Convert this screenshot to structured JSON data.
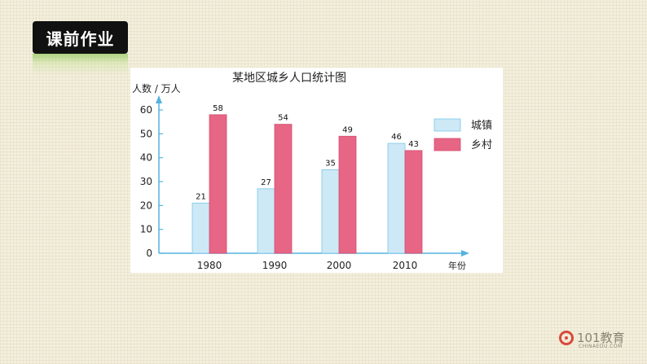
{
  "header": {
    "badge_text": "课前作业"
  },
  "colors": {
    "urban": "#cde9f6",
    "urban_stroke": "#7cc5e8",
    "rural": "#e76585",
    "rural_stroke": "#d44f70",
    "axis": "#55b2e0"
  },
  "chart_data": {
    "type": "bar",
    "title": "某地区城乡人口统计图",
    "ylabel": "人数 / 万人",
    "xlabel": "年份",
    "categories": [
      "1980",
      "1990",
      "2000",
      "2010"
    ],
    "series": [
      {
        "name": "城镇",
        "values": [
          21,
          27,
          35,
          46
        ]
      },
      {
        "name": "乡村",
        "values": [
          58,
          54,
          49,
          43
        ]
      }
    ],
    "yticks": [
      0,
      10,
      20,
      30,
      40,
      50,
      60
    ],
    "ylim": [
      0,
      60
    ],
    "grid": false,
    "legend": "right"
  },
  "logo": {
    "main": "101教育",
    "sub": "CHINAEDU.COM"
  }
}
